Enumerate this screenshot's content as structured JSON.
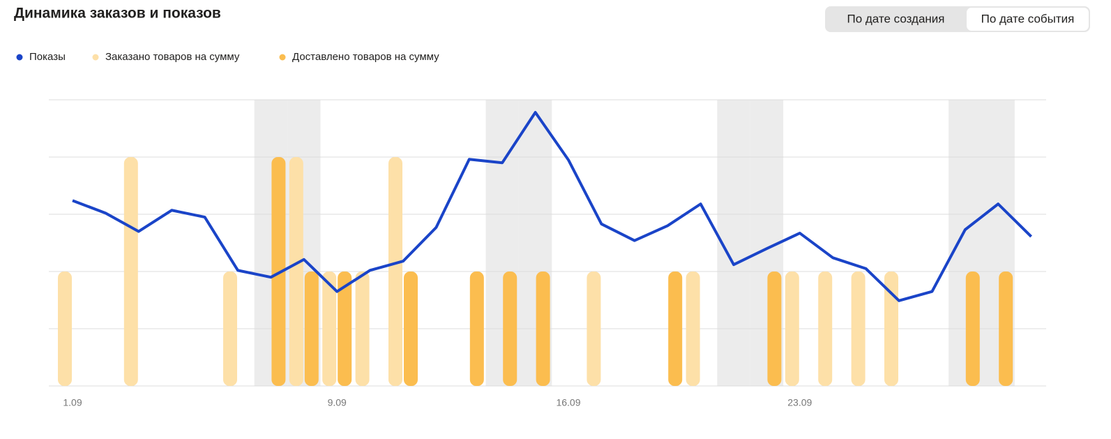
{
  "chart_data": {
    "type": "combo",
    "title": "Динамика заказов и показов",
    "categories": [
      "1.09",
      null,
      null,
      null,
      null,
      null,
      null,
      null,
      "9.09",
      null,
      null,
      null,
      null,
      null,
      null,
      "16.09",
      null,
      null,
      null,
      null,
      null,
      null,
      "23.09",
      null,
      null,
      null,
      null,
      null,
      null,
      null
    ],
    "series": [
      {
        "name": "Показы",
        "type": "line",
        "color": "#1a44c8",
        "values": [
          3.24,
          3.02,
          2.7,
          3.07,
          2.95,
          2.02,
          1.9,
          2.21,
          1.65,
          2.02,
          2.18,
          2.77,
          3.96,
          3.9,
          4.78,
          3.95,
          2.83,
          2.54,
          2.8,
          3.18,
          2.12,
          2.4,
          2.67,
          2.24,
          2.05,
          1.49,
          1.65,
          2.73,
          3.18,
          2.61
        ]
      },
      {
        "name": "Заказано товаров на сумму",
        "type": "bar",
        "color": "#fde0a8",
        "values": [
          2,
          0,
          4,
          0,
          0,
          2,
          0,
          4,
          2,
          2,
          4,
          0,
          0,
          0,
          0,
          0,
          2,
          0,
          0,
          2,
          0,
          0,
          2,
          2,
          2,
          2,
          0,
          0,
          0,
          0
        ]
      },
      {
        "name": "Доставлено товаров на сумму",
        "type": "bar",
        "color": "#fbbd4f",
        "values": [
          0,
          0,
          0,
          0,
          0,
          0,
          4,
          2,
          2,
          0,
          2,
          0,
          2,
          2,
          2,
          0,
          0,
          0,
          2,
          0,
          0,
          2,
          0,
          0,
          0,
          0,
          0,
          2,
          2,
          0
        ]
      }
    ],
    "ylim": [
      0,
      5
    ],
    "yticks": [
      0,
      1,
      2,
      3,
      4,
      5
    ],
    "grid": true,
    "shaded": [
      6,
      7,
      13,
      14,
      20,
      21,
      27,
      28
    ]
  },
  "controls": {
    "options": [
      "По дате создания",
      "По дате события"
    ],
    "selected": 1
  }
}
